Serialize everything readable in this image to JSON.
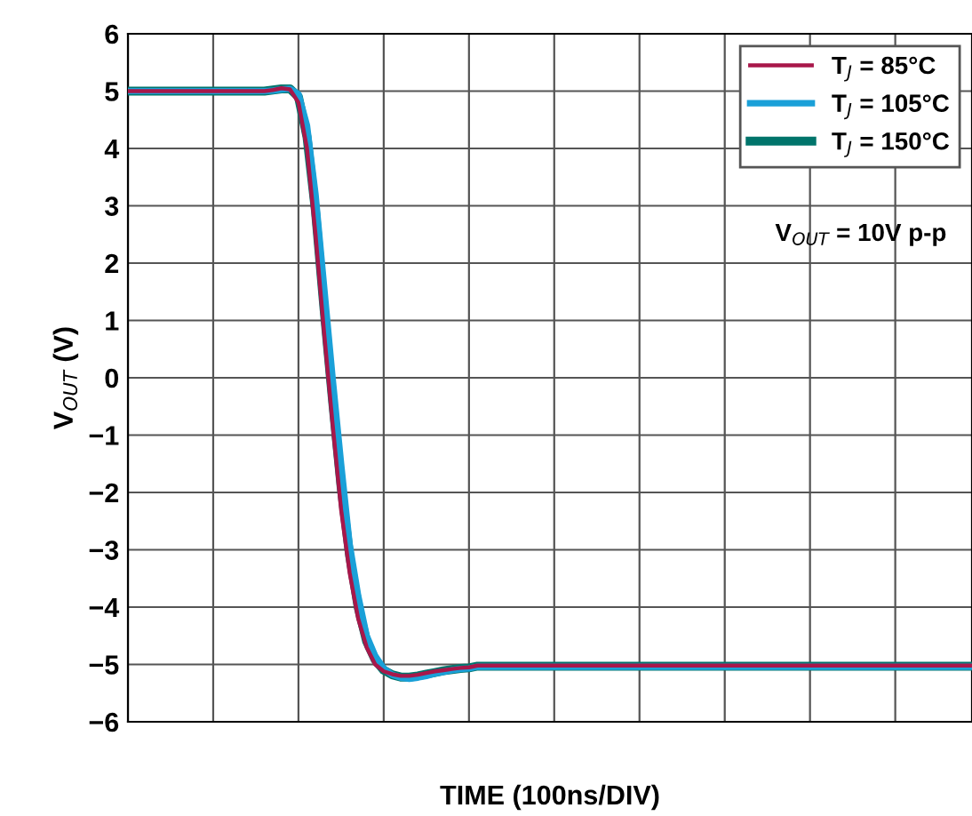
{
  "chart_data": {
    "type": "line",
    "xlabel": "TIME (100ns/DIV)",
    "ylabel": "V$_{OUT}$ (V)",
    "annotations": [
      "V$_{OUT}$ = 10V p-p"
    ],
    "categories": [
      null,
      null,
      null,
      null,
      null,
      null,
      null,
      null,
      null,
      null,
      null,
      null,
      null,
      null,
      null,
      null,
      null,
      null,
      null,
      null,
      null,
      null,
      null,
      null,
      null,
      null,
      null,
      null,
      null,
      null,
      null,
      null,
      null,
      null,
      null,
      null,
      null,
      null,
      null,
      null,
      null,
      null,
      null,
      null,
      null,
      null,
      null,
      null,
      null,
      null,
      null,
      null,
      null,
      null,
      null,
      null,
      null,
      null,
      null,
      null,
      null,
      null,
      null,
      null,
      null,
      null,
      null,
      null,
      null,
      null,
      null,
      null,
      null,
      null,
      null,
      null,
      null,
      null,
      null,
      null,
      null,
      null,
      null,
      null,
      null,
      null,
      null,
      null,
      null,
      null,
      null,
      null,
      null,
      null,
      null,
      null,
      null,
      null,
      null,
      null
    ],
    "ylim": [
      -6,
      6
    ],
    "yticks": [
      -6,
      -5,
      -4,
      -3,
      -2,
      -1,
      0,
      1,
      2,
      3,
      4,
      5,
      6
    ],
    "grid": true,
    "legend": "top right",
    "tick_labels": "y",
    "line_style": "solid",
    "marker": "none",
    "series": [
      {
        "name": "T$_{J}$ = 85°C",
        "color": "#a8174a",
        "values": [
          5,
          5,
          5,
          5,
          5,
          5,
          5,
          5,
          5,
          5,
          5,
          5,
          5,
          5,
          5,
          5,
          5,
          5.02,
          5.05,
          5.03,
          4.8,
          4.0,
          2.5,
          0.8,
          -0.8,
          -2.3,
          -3.4,
          -4.2,
          -4.7,
          -5.0,
          -5.12,
          -5.17,
          -5.2,
          -5.2,
          -5.18,
          -5.15,
          -5.12,
          -5.1,
          -5.08,
          -5.06,
          -5.05,
          -5.02,
          -5.02,
          -5.02,
          -5.02,
          -5.02,
          -5.02,
          -5.02,
          -5.02,
          -5.02,
          -5.02,
          -5.02,
          -5.02,
          -5.02,
          -5.02,
          -5.02,
          -5.02,
          -5.02,
          -5.02,
          -5.02,
          -5.02,
          -5.02,
          -5.02,
          -5.02,
          -5.02,
          -5.02,
          -5.02,
          -5.02,
          -5.02,
          -5.02,
          -5.02,
          -5.02,
          -5.02,
          -5.02,
          -5.02,
          -5.02,
          -5.02,
          -5.02,
          -5.02,
          -5.02,
          -5.02,
          -5.02,
          -5.02,
          -5.02,
          -5.02,
          -5.02,
          -5.02,
          -5.02,
          -5.02,
          -5.02,
          -5.02,
          -5.02,
          -5.02,
          -5.02,
          -5.02,
          -5.02,
          -5.02,
          -5.02,
          -5.02,
          -5.02
        ]
      },
      {
        "name": "T$_{J}$ = 105°C",
        "color": "#1aa0d8",
        "values": [
          5,
          5,
          5,
          5,
          5,
          5,
          5,
          5,
          5,
          5,
          5,
          5,
          5,
          5,
          5,
          5,
          5,
          5.01,
          5.03,
          5.04,
          4.95,
          4.4,
          3.2,
          1.6,
          0,
          -1.5,
          -2.9,
          -3.8,
          -4.5,
          -4.85,
          -5.07,
          -5.18,
          -5.23,
          -5.25,
          -5.23,
          -5.2,
          -5.16,
          -5.13,
          -5.1,
          -5.08,
          -5.07,
          -5.04,
          -5.04,
          -5.04,
          -5.04,
          -5.04,
          -5.04,
          -5.04,
          -5.04,
          -5.04,
          -5.04,
          -5.04,
          -5.04,
          -5.04,
          -5.04,
          -5.04,
          -5.04,
          -5.04,
          -5.04,
          -5.04,
          -5.04,
          -5.04,
          -5.04,
          -5.04,
          -5.04,
          -5.04,
          -5.04,
          -5.04,
          -5.04,
          -5.04,
          -5.04,
          -5.04,
          -5.04,
          -5.04,
          -5.04,
          -5.04,
          -5.04,
          -5.04,
          -5.04,
          -5.04,
          -5.04,
          -5.04,
          -5.04,
          -5.04,
          -5.04,
          -5.04,
          -5.04,
          -5.04,
          -5.04,
          -5.04,
          -5.04,
          -5.04,
          -5.04,
          -5.04,
          -5.04,
          -5.04,
          -5.04,
          -5.04,
          -5.04,
          -5.04
        ]
      },
      {
        "name": "T$_{J}$ = 150°C",
        "color": "#00746b",
        "values": [
          5,
          5,
          5,
          5,
          5,
          5,
          5,
          5,
          5,
          5,
          5,
          5,
          5,
          5,
          5,
          5,
          5,
          5.02,
          5.04,
          5.04,
          4.9,
          4.2,
          2.9,
          1.2,
          -0.4,
          -1.9,
          -3.1,
          -4.0,
          -4.6,
          -4.92,
          -5.1,
          -5.18,
          -5.22,
          -5.22,
          -5.2,
          -5.17,
          -5.14,
          -5.11,
          -5.09,
          -5.07,
          -5.06,
          -5.03,
          -5.03,
          -5.03,
          -5.03,
          -5.03,
          -5.03,
          -5.03,
          -5.03,
          -5.03,
          -5.03,
          -5.03,
          -5.03,
          -5.03,
          -5.03,
          -5.03,
          -5.03,
          -5.03,
          -5.03,
          -5.03,
          -5.03,
          -5.03,
          -5.03,
          -5.03,
          -5.03,
          -5.03,
          -5.03,
          -5.03,
          -5.03,
          -5.03,
          -5.03,
          -5.03,
          -5.03,
          -5.03,
          -5.03,
          -5.03,
          -5.03,
          -5.03,
          -5.03,
          -5.03,
          -5.03,
          -5.03,
          -5.03,
          -5.03,
          -5.03,
          -5.03,
          -5.03,
          -5.03,
          -5.03,
          -5.03,
          -5.03,
          -5.03,
          -5.03,
          -5.03,
          -5.03,
          -5.03,
          -5.03,
          -5.03,
          -5.03,
          -5.03
        ]
      }
    ]
  }
}
